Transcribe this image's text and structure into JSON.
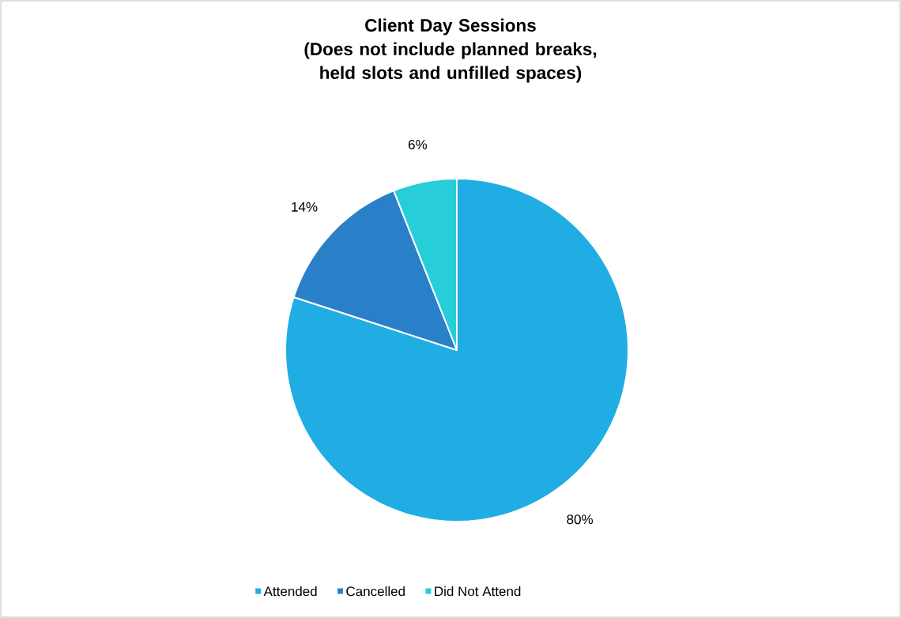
{
  "chart_data": {
    "type": "pie",
    "title": "Client Day Sessions",
    "subtitle": "(Does not include planned breaks, held slots and unfilled spaces)",
    "categories": [
      "Attended",
      "Cancelled",
      "Did Not Attend"
    ],
    "values": [
      80,
      14,
      6
    ],
    "value_labels": [
      "80%",
      "14%",
      "6%"
    ],
    "colors": [
      "#1fade3",
      "#2a80c8",
      "#27cdd8"
    ],
    "legend": "bottom"
  }
}
